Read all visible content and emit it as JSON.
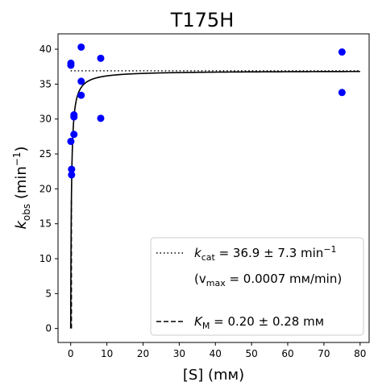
{
  "chart_data": {
    "type": "scatter",
    "title": "T175H",
    "xlabel": "[S] (mм)",
    "ylabel_main": "k",
    "ylabel_sub": "obs",
    "ylabel_unit_open": " (min",
    "ylabel_unit_sup": "−1",
    "ylabel_unit_close": ")",
    "xlim": [
      -3.5,
      82.5
    ],
    "ylim": [
      -2,
      42.2
    ],
    "x_ticks": [
      0,
      10,
      20,
      30,
      40,
      50,
      60,
      70,
      80
    ],
    "y_ticks": [
      0,
      5,
      10,
      15,
      20,
      25,
      30,
      35,
      40
    ],
    "grid": false,
    "legend_position": "lower-right",
    "points_color": "#0000ff",
    "line_color": "#000000",
    "points": [
      {
        "x": 0.05,
        "y": 37.7
      },
      {
        "x": 0.05,
        "y": 38.0
      },
      {
        "x": 0.05,
        "y": 26.8
      },
      {
        "x": 0.25,
        "y": 22.8
      },
      {
        "x": 0.25,
        "y": 22.0
      },
      {
        "x": 0.9,
        "y": 30.3
      },
      {
        "x": 0.9,
        "y": 30.6
      },
      {
        "x": 0.9,
        "y": 27.8
      },
      {
        "x": 2.9,
        "y": 40.3
      },
      {
        "x": 2.9,
        "y": 35.4
      },
      {
        "x": 2.9,
        "y": 33.4
      },
      {
        "x": 8.3,
        "y": 38.7
      },
      {
        "x": 8.3,
        "y": 30.1
      },
      {
        "x": 75.0,
        "y": 39.6
      },
      {
        "x": 75.0,
        "y": 33.8
      }
    ],
    "fit": {
      "kcat": 36.9,
      "km": 0.2,
      "x_max": 80
    },
    "kcat_line": {
      "y": 36.9,
      "x_range": [
        0,
        80
      ]
    },
    "km_line": {
      "x": 0.2,
      "y_max": 18.45
    },
    "legend": {
      "kcat_sym": "k",
      "kcat_sub": "cat",
      "kcat_value": " = 36.9 ± 7.3 min",
      "kcat_sup": "−1",
      "vmax_open": "(v",
      "vmax_sub": "max",
      "vmax_value": " = 0.0007 mм/min)",
      "km_sym": "K",
      "km_sub": "M",
      "km_value": " = 0.20 ± 0.28 mм"
    }
  }
}
